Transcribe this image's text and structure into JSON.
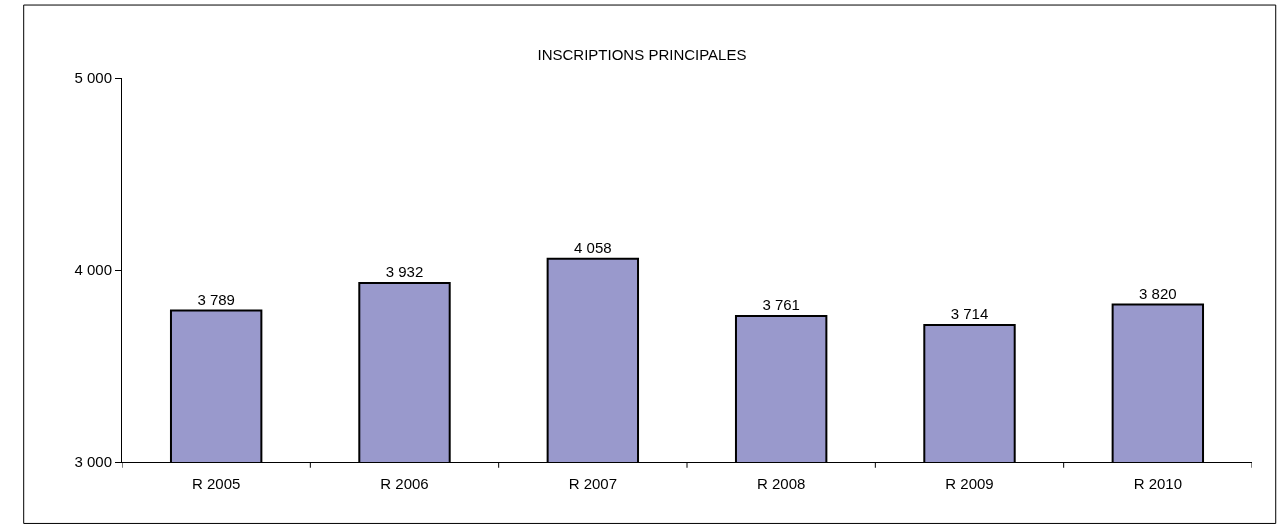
{
  "chart_data": {
    "type": "bar",
    "title": "INSCRIPTIONS PRINCIPALES",
    "categories": [
      "R 2005",
      "R 2006",
      "R 2007",
      "R 2008",
      "R 2009",
      "R 2010"
    ],
    "values": [
      3789,
      3932,
      4058,
      3761,
      3714,
      3820
    ],
    "value_labels": [
      "3 789",
      "3 932",
      "4 058",
      "3 761",
      "3 714",
      "3 820"
    ],
    "color": "#9999cc",
    "ylim": [
      3000,
      5000
    ],
    "yticks": [
      {
        "value": 3000,
        "label": "3 000"
      },
      {
        "value": 4000,
        "label": "4 000"
      },
      {
        "value": 5000,
        "label": "5 000"
      }
    ],
    "grid": false
  }
}
